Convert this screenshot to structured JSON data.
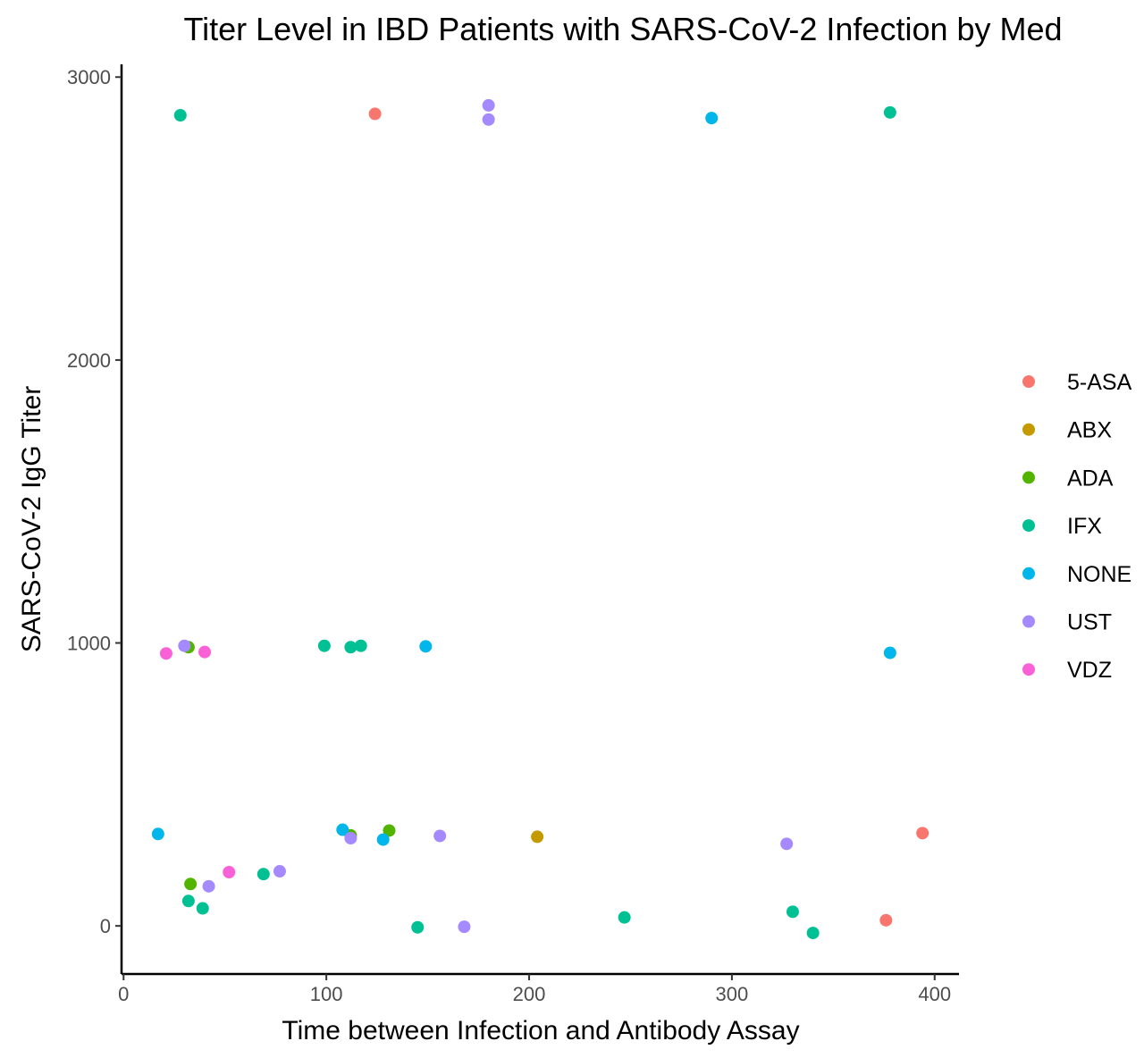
{
  "chart_data": {
    "type": "scatter",
    "title": "Titer Level in IBD Patients with SARS-CoV-2 Infection by Med",
    "xlabel": "Time between Infection and Antibody Assay",
    "ylabel": "SARS-CoV-2 IgG Titer",
    "xlim": [
      -1,
      412
    ],
    "ylim": [
      -170,
      3045
    ],
    "x_ticks": [
      0,
      100,
      200,
      300,
      400
    ],
    "y_ticks": [
      0,
      1000,
      2000,
      3000
    ],
    "grid": false,
    "legend_position": "right",
    "series": [
      {
        "name": "5-ASA",
        "color": "#F8766D",
        "points": [
          {
            "x": 124,
            "y": 2870
          },
          {
            "x": 376,
            "y": 20
          },
          {
            "x": 394,
            "y": 328
          }
        ]
      },
      {
        "name": "ABX",
        "color": "#C49A00",
        "points": [
          {
            "x": 204,
            "y": 315
          }
        ]
      },
      {
        "name": "ADA",
        "color": "#53B400",
        "points": [
          {
            "x": 32,
            "y": 985
          },
          {
            "x": 33,
            "y": 148
          },
          {
            "x": 131,
            "y": 337
          },
          {
            "x": 112,
            "y": 320
          }
        ]
      },
      {
        "name": "IFX",
        "color": "#00C094",
        "points": [
          {
            "x": 28,
            "y": 2865
          },
          {
            "x": 378,
            "y": 2875
          },
          {
            "x": 99,
            "y": 990
          },
          {
            "x": 112,
            "y": 985
          },
          {
            "x": 117,
            "y": 990
          },
          {
            "x": 69,
            "y": 183
          },
          {
            "x": 32,
            "y": 88
          },
          {
            "x": 39,
            "y": 62
          },
          {
            "x": 145,
            "y": -5
          },
          {
            "x": 247,
            "y": 30
          },
          {
            "x": 330,
            "y": 50
          },
          {
            "x": 340,
            "y": -25
          }
        ]
      },
      {
        "name": "NONE",
        "color": "#00B6EB",
        "points": [
          {
            "x": 290,
            "y": 2855
          },
          {
            "x": 149,
            "y": 988
          },
          {
            "x": 378,
            "y": 965
          },
          {
            "x": 17,
            "y": 325
          },
          {
            "x": 108,
            "y": 340
          },
          {
            "x": 128,
            "y": 305
          }
        ]
      },
      {
        "name": "UST",
        "color": "#A58AFF",
        "points": [
          {
            "x": 180,
            "y": 2900
          },
          {
            "x": 180,
            "y": 2850
          },
          {
            "x": 30,
            "y": 990
          },
          {
            "x": 112,
            "y": 310
          },
          {
            "x": 156,
            "y": 318
          },
          {
            "x": 327,
            "y": 290
          },
          {
            "x": 77,
            "y": 193
          },
          {
            "x": 42,
            "y": 140
          },
          {
            "x": 168,
            "y": -3
          }
        ]
      },
      {
        "name": "VDZ",
        "color": "#FB61D7",
        "points": [
          {
            "x": 21,
            "y": 963
          },
          {
            "x": 40,
            "y": 968
          },
          {
            "x": 52,
            "y": 190
          }
        ]
      }
    ]
  }
}
